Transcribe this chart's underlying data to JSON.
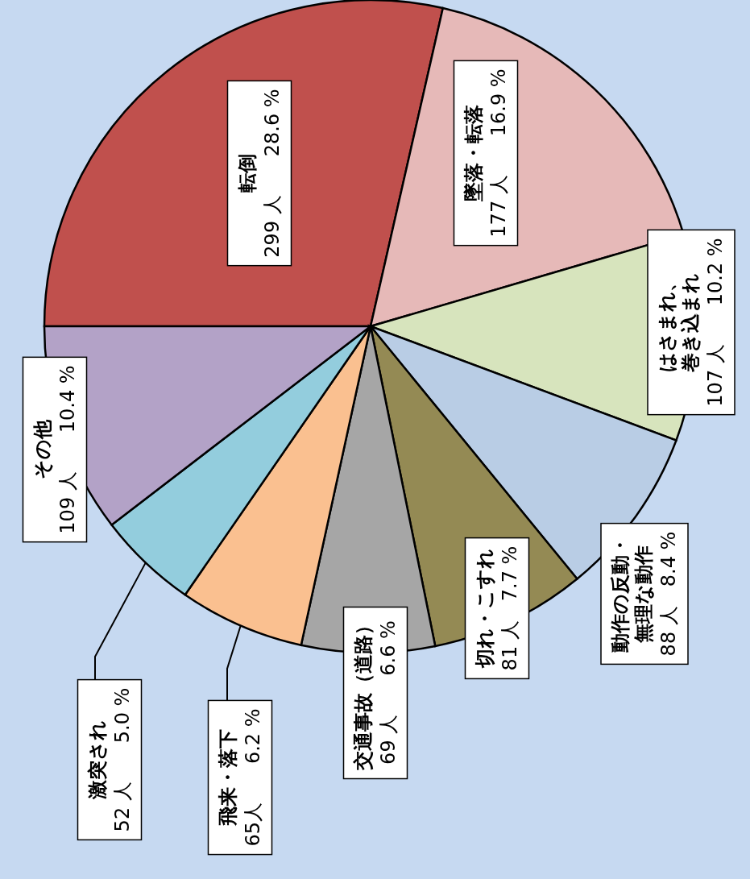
{
  "chart_data": {
    "type": "pie",
    "categories": [
      "転倒",
      "墜落・転落",
      "はさまれ、巻き込まれ",
      "動作の反動・無理な動作",
      "切れ・こすれ",
      "交通事故（道路）",
      "飛来・落下",
      "激突され",
      "その他"
    ],
    "values": [
      299,
      177,
      107,
      88,
      81,
      69,
      65,
      52,
      109
    ],
    "value_labels": [
      "299 人　　28.6 %",
      "177 人　　16.9 %",
      "107 人　　10.2 %",
      "88 人　8.4 %",
      "81 人　7.7 %",
      "69 人　　6.6 %",
      "65人　　6.2 %",
      "52 人　　5.0 %",
      "109 人　　10.4 %"
    ],
    "colors": [
      "#c0504d",
      "#e6b9b8",
      "#d7e4bd",
      "#b9cde5",
      "#948a54",
      "#a6a6a6",
      "#fac090",
      "#93cddd",
      "#b3a2c7"
    ]
  }
}
